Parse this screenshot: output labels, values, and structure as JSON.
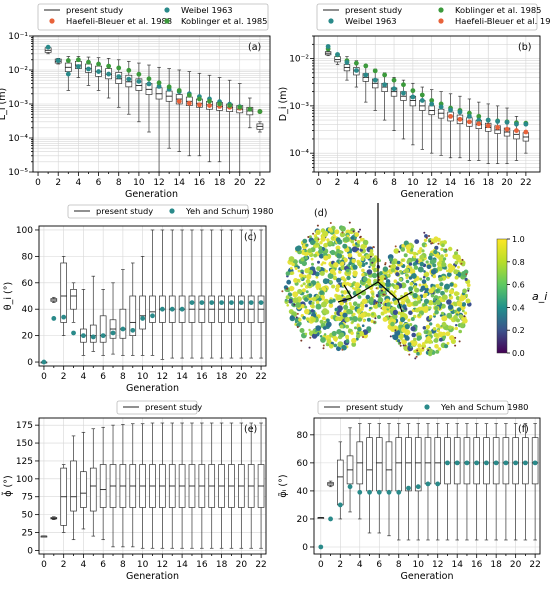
{
  "figure": {
    "panel_labels": [
      "(a)",
      "(b)",
      "(c)",
      "(d)",
      "(e)",
      "(f)"
    ]
  },
  "chart_data": [
    {
      "panel": "(a)",
      "type": "box",
      "xlabel": "Generation",
      "ylabel": "L_i (m)",
      "yscale": "log",
      "ylim": [
        1e-05,
        0.1
      ],
      "xticks": [
        "0",
        "2",
        "4",
        "6",
        "8",
        "10",
        "12",
        "14",
        "16",
        "18",
        "20",
        "22"
      ],
      "yticks": [
        "10⁻⁵",
        "10⁻⁴",
        "10⁻³",
        "10⁻²",
        "10⁻¹"
      ],
      "legend": [
        "present study",
        "Weibel 1963",
        "Haefeli-Bleuer et al. 1988",
        "Koblinger et al. 1985"
      ],
      "generations": [
        1,
        2,
        3,
        4,
        5,
        6,
        7,
        8,
        9,
        10,
        11,
        12,
        13,
        14,
        15,
        16,
        17,
        18,
        19,
        20,
        21,
        22
      ],
      "box_median": [
        0.038,
        0.018,
        0.012,
        0.014,
        0.011,
        0.009,
        0.0075,
        0.0055,
        0.0045,
        0.0035,
        0.0027,
        0.002,
        0.0017,
        0.0014,
        0.0012,
        0.00105,
        0.00095,
        0.00085,
        0.00078,
        0.0007,
        0.00062,
        0.00022
      ],
      "box_q1": [
        0.033,
        0.016,
        0.009,
        0.011,
        0.0085,
        0.0065,
        0.0055,
        0.004,
        0.0032,
        0.0025,
        0.0019,
        0.0014,
        0.0012,
        0.001,
        0.0009,
        0.0008,
        0.0007,
        0.00065,
        0.0006,
        0.00055,
        0.00048,
        0.00018
      ],
      "box_q3": [
        0.045,
        0.021,
        0.016,
        0.018,
        0.015,
        0.013,
        0.011,
        0.0085,
        0.007,
        0.0055,
        0.004,
        0.003,
        0.0024,
        0.0019,
        0.0016,
        0.0014,
        0.0012,
        0.0011,
        0.001,
        0.0009,
        0.0008,
        0.00026
      ],
      "box_low": [
        0.03,
        0.015,
        0.0025,
        0.006,
        0.0035,
        0.0025,
        0.0015,
        0.0008,
        0.0005,
        0.0003,
        0.00015,
        1e-05,
        5e-05,
        4e-05,
        3e-05,
        3e-05,
        2e-05,
        2e-05,
        1e-05,
        1e-05,
        0.0002,
        0.00015
      ],
      "box_high": [
        0.05,
        0.022,
        0.025,
        0.025,
        0.024,
        0.023,
        0.022,
        0.02,
        0.018,
        0.016,
        0.014,
        0.012,
        0.011,
        0.01,
        0.009,
        0.008,
        0.007,
        0.006,
        0.005,
        0.004,
        0.0015,
        0.0003
      ],
      "series": [
        {
          "name": "Weibel 1963",
          "color": "#2a8a8a",
          "x": [
            1,
            2,
            3,
            4,
            5,
            6,
            7,
            8,
            9,
            10,
            11,
            12,
            13,
            14,
            15,
            16,
            17,
            18,
            19,
            20,
            21,
            22
          ],
          "y": [
            0.047,
            0.019,
            0.0076,
            0.0127,
            0.0107,
            0.009,
            0.0076,
            0.0064,
            0.0054,
            0.0046,
            0.0039,
            0.0033,
            0.0027,
            0.0023,
            0.002,
            0.00165,
            0.00141,
            0.00117,
            0.00099,
            0.00083,
            0.0007,
            0.0006
          ]
        },
        {
          "name": "Haefeli-Bleuer et al. 1988",
          "color": "#e8623a",
          "x": [
            14,
            15,
            16,
            17,
            18,
            19,
            20,
            21,
            22
          ],
          "y": [
            0.0012,
            0.00105,
            0.00095,
            0.0009,
            0.00085,
            0.0008,
            0.00075,
            0.0007,
            0.0006
          ]
        },
        {
          "name": "Koblinger et al. 1985",
          "color": "#3c9a3c",
          "x": [
            3,
            4,
            5,
            6,
            7,
            8,
            9,
            10,
            11,
            12,
            13,
            14,
            15,
            16,
            17,
            18,
            19,
            20,
            21,
            22
          ],
          "y": [
            0.019,
            0.02,
            0.017,
            0.015,
            0.013,
            0.0115,
            0.0098,
            0.0075,
            0.0055,
            0.0042,
            0.0032,
            0.0025,
            0.0018,
            0.0014,
            0.0012,
            0.001,
            0.0009,
            0.0008,
            0.0007,
            0.0006
          ]
        }
      ]
    },
    {
      "panel": "(b)",
      "type": "box",
      "xlabel": "Generation",
      "ylabel": "D_i (m)",
      "yscale": "log",
      "ylim": [
        4e-05,
        0.03
      ],
      "xticks": [
        "0",
        "2",
        "4",
        "6",
        "8",
        "10",
        "12",
        "14",
        "16",
        "18",
        "20",
        "22"
      ],
      "yticks": [
        "10⁻⁴",
        "10⁻³",
        "10⁻²"
      ],
      "legend": [
        "present study",
        "Koblinger et al. 1985",
        "Weibel 1963",
        "Haefeli-Bleuer et al. 1988"
      ],
      "generations": [
        1,
        2,
        3,
        4,
        5,
        6,
        7,
        8,
        9,
        10,
        11,
        12,
        13,
        14,
        15,
        16,
        17,
        18,
        19,
        20,
        21,
        22
      ],
      "box_median": [
        0.013,
        0.0095,
        0.0065,
        0.0055,
        0.004,
        0.003,
        0.0025,
        0.002,
        0.0016,
        0.0013,
        0.001,
        0.0008,
        0.0007,
        0.0006,
        0.00052,
        0.00046,
        0.0004,
        0.00035,
        0.00031,
        0.00028,
        0.00025,
        0.00022
      ],
      "box_q1": [
        0.012,
        0.0085,
        0.0055,
        0.0045,
        0.0033,
        0.0024,
        0.002,
        0.0016,
        0.0013,
        0.001,
        0.0008,
        0.00065,
        0.00055,
        0.00048,
        0.00042,
        0.00037,
        0.00033,
        0.00029,
        0.00026,
        0.00023,
        0.0002,
        0.00018
      ],
      "box_q3": [
        0.014,
        0.011,
        0.0075,
        0.0065,
        0.0048,
        0.0037,
        0.003,
        0.0024,
        0.002,
        0.0016,
        0.0013,
        0.001,
        0.00085,
        0.00074,
        0.00064,
        0.00056,
        0.00049,
        0.00043,
        0.00038,
        0.00034,
        0.0003,
        0.00027
      ],
      "box_low": [
        0.0115,
        0.0075,
        0.0035,
        0.0025,
        0.0012,
        0.0008,
        0.0005,
        0.0003,
        0.0002,
        0.00015,
        0.00012,
        0.0001,
        9e-05,
        8e-05,
        8e-05,
        7e-05,
        7e-05,
        6e-05,
        6e-05,
        6e-05,
        7e-05,
        0.0001
      ],
      "box_high": [
        0.0145,
        0.0115,
        0.011,
        0.009,
        0.0075,
        0.006,
        0.005,
        0.004,
        0.0035,
        0.003,
        0.0025,
        0.0022,
        0.002,
        0.0018,
        0.0016,
        0.0014,
        0.0012,
        0.0011,
        0.001,
        0.0009,
        0.0006,
        0.0003
      ],
      "series": [
        {
          "name": "Koblinger et al. 1985",
          "color": "#3c9a3c",
          "x": [
            1,
            2,
            3,
            4,
            5,
            6,
            7,
            8,
            9,
            10,
            11,
            12,
            13,
            14,
            15,
            16,
            17,
            18,
            19,
            20,
            21,
            22
          ],
          "y": [
            0.016,
            0.012,
            0.009,
            0.008,
            0.007,
            0.0055,
            0.0045,
            0.0035,
            0.0028,
            0.0021,
            0.0017,
            0.0013,
            0.0011,
            0.0009,
            0.0008,
            0.0007,
            0.0006,
            0.0005,
            0.00048,
            0.00046,
            0.00044,
            0.00043
          ]
        },
        {
          "name": "Weibel 1963",
          "color": "#2a8a8a",
          "x": [
            1,
            2,
            3,
            4,
            5,
            6,
            7,
            8,
            9,
            10,
            11,
            12,
            13,
            14,
            15,
            16,
            17,
            18,
            19,
            20,
            21,
            22
          ],
          "y": [
            0.018,
            0.0122,
            0.0083,
            0.0056,
            0.0045,
            0.0035,
            0.0028,
            0.0023,
            0.00186,
            0.00154,
            0.0013,
            0.00109,
            0.00095,
            0.00082,
            0.00074,
            0.0006,
            0.0005,
            0.0005,
            0.00047,
            0.00045,
            0.00041,
            0.00041
          ]
        },
        {
          "name": "Haefeli-Bleuer et al. 1988",
          "color": "#e8623a",
          "x": [
            14,
            15,
            16,
            17,
            18,
            19,
            20,
            21,
            22
          ],
          "y": [
            0.0006,
            0.00052,
            0.00046,
            0.00042,
            0.00038,
            0.00035,
            0.00032,
            0.0003,
            0.00028
          ]
        }
      ]
    },
    {
      "panel": "(c)",
      "type": "box",
      "xlabel": "Generation",
      "ylabel": "θ_i (°)",
      "yscale": "linear",
      "ylim": [
        -3,
        103
      ],
      "xticks": [
        "0",
        "2",
        "4",
        "6",
        "8",
        "10",
        "12",
        "14",
        "16",
        "18",
        "20",
        "22"
      ],
      "yticks": [
        "0",
        "20",
        "40",
        "60",
        "80",
        "100"
      ],
      "legend": [
        "present study",
        "Yeh and Schum 1980"
      ],
      "generations": [
        0,
        1,
        2,
        3,
        4,
        5,
        6,
        7,
        8,
        9,
        10,
        11,
        12,
        13,
        14,
        15,
        16,
        17,
        18,
        19,
        20,
        21,
        22
      ],
      "box_median": [
        0,
        47,
        50,
        50,
        20,
        20,
        20,
        25,
        25,
        30,
        35,
        38,
        40,
        40,
        40,
        40,
        40,
        40,
        40,
        40,
        40,
        40,
        40
      ],
      "box_q1": [
        0,
        46,
        30,
        40,
        15,
        15,
        15,
        18,
        18,
        20,
        25,
        30,
        30,
        30,
        30,
        30,
        30,
        30,
        30,
        30,
        30,
        30,
        30
      ],
      "box_q3": [
        0,
        48,
        75,
        55,
        25,
        28,
        35,
        32,
        40,
        50,
        50,
        50,
        50,
        50,
        50,
        50,
        50,
        50,
        50,
        50,
        50,
        50,
        50
      ],
      "box_low": [
        0,
        45,
        20,
        30,
        5,
        8,
        5,
        6,
        5,
        5,
        5,
        5,
        2,
        3,
        3,
        3,
        3,
        3,
        3,
        3,
        3,
        3,
        3
      ],
      "box_high": [
        0,
        49,
        80,
        60,
        55,
        65,
        55,
        60,
        70,
        75,
        80,
        100,
        100,
        100,
        100,
        100,
        100,
        100,
        100,
        100,
        100,
        100,
        100
      ],
      "series": [
        {
          "name": "Yeh and Schum 1980",
          "color": "#2a8a8a",
          "x": [
            0,
            1,
            2,
            3,
            4,
            5,
            6,
            7,
            8,
            9,
            10,
            11,
            12,
            13,
            14,
            15,
            16,
            17,
            18,
            19,
            20,
            21,
            22
          ],
          "y": [
            0,
            33,
            34,
            22,
            20,
            19,
            20,
            22,
            25,
            24,
            33,
            35,
            40,
            40,
            40,
            45,
            45,
            45,
            45,
            45,
            45,
            45,
            45
          ]
        }
      ]
    },
    {
      "panel": "(d)",
      "type": "heatmap",
      "colorbar_label": "a_i",
      "colorbar_ticks": [
        "0.0",
        "0.2",
        "0.4",
        "0.6",
        "0.8",
        "1.0"
      ],
      "vmin": 0.0,
      "vmax": 1.0
    },
    {
      "panel": "(e)",
      "type": "box",
      "xlabel": "Generation",
      "ylabel": "ϕ̃ (°)",
      "yscale": "linear",
      "ylim": [
        -5,
        185
      ],
      "xticks": [
        "0",
        "2",
        "4",
        "6",
        "8",
        "10",
        "12",
        "14",
        "16",
        "18",
        "20",
        "22"
      ],
      "yticks": [
        "0",
        "25",
        "50",
        "75",
        "100",
        "125",
        "150",
        "175"
      ],
      "legend": [
        "present study"
      ],
      "generations": [
        0,
        1,
        2,
        3,
        4,
        5,
        6,
        7,
        8,
        9,
        10,
        11,
        12,
        13,
        14,
        15,
        16,
        17,
        18,
        19,
        20,
        21,
        22
      ],
      "box_median": [
        20,
        45,
        75,
        75,
        80,
        90,
        85,
        90,
        90,
        90,
        90,
        90,
        90,
        90,
        90,
        90,
        90,
        90,
        90,
        90,
        90,
        90,
        90
      ],
      "box_q1": [
        20,
        44,
        35,
        55,
        60,
        55,
        60,
        60,
        60,
        60,
        60,
        60,
        60,
        60,
        60,
        60,
        60,
        60,
        60,
        60,
        60,
        60,
        60
      ],
      "box_q3": [
        20,
        46,
        115,
        125,
        110,
        115,
        120,
        120,
        120,
        120,
        120,
        120,
        120,
        120,
        120,
        120,
        120,
        120,
        120,
        120,
        120,
        120,
        120
      ],
      "box_low": [
        20,
        43,
        25,
        15,
        30,
        20,
        15,
        5,
        5,
        5,
        3,
        3,
        3,
        3,
        3,
        3,
        3,
        3,
        3,
        3,
        3,
        3,
        3
      ],
      "box_high": [
        20,
        47,
        120,
        160,
        165,
        170,
        172,
        175,
        176,
        177,
        177,
        178,
        178,
        178,
        178,
        178,
        178,
        178,
        178,
        178,
        178,
        178,
        178
      ],
      "series": []
    },
    {
      "panel": "(f)",
      "type": "box",
      "xlabel": "Generation",
      "ylabel": "φ̃ᵢ (°)",
      "yscale": "linear",
      "ylim": [
        -5,
        92
      ],
      "xticks": [
        "0",
        "2",
        "4",
        "6",
        "8",
        "10",
        "12",
        "14",
        "16",
        "18",
        "20",
        "22"
      ],
      "yticks": [
        "0",
        "20",
        "40",
        "60",
        "80"
      ],
      "legend": [
        "present study",
        "Yeh and Schum 1980"
      ],
      "generations": [
        0,
        1,
        2,
        3,
        4,
        5,
        6,
        7,
        8,
        9,
        10,
        11,
        12,
        13,
        14,
        15,
        16,
        17,
        18,
        19,
        20,
        21,
        22
      ],
      "box_median": [
        21,
        45,
        50,
        55,
        60,
        55,
        60,
        55,
        60,
        60,
        60,
        60,
        60,
        60,
        60,
        60,
        60,
        60,
        60,
        60,
        60,
        60,
        60
      ],
      "box_q1": [
        21,
        44,
        30,
        45,
        45,
        40,
        40,
        40,
        40,
        40,
        40,
        45,
        45,
        45,
        45,
        45,
        45,
        45,
        45,
        45,
        45,
        45,
        45
      ],
      "box_q3": [
        21,
        46,
        62,
        65,
        75,
        78,
        78,
        75,
        78,
        78,
        78,
        78,
        78,
        78,
        78,
        78,
        78,
        78,
        78,
        78,
        78,
        78,
        78
      ],
      "box_low": [
        21,
        43,
        20,
        25,
        20,
        10,
        10,
        8,
        5,
        5,
        5,
        5,
        5,
        5,
        5,
        5,
        5,
        5,
        5,
        5,
        5,
        5,
        5
      ],
      "box_high": [
        21,
        47,
        75,
        85,
        88,
        88,
        88,
        88,
        88,
        88,
        88,
        88,
        88,
        88,
        88,
        88,
        88,
        88,
        88,
        88,
        88,
        88,
        88
      ],
      "series": [
        {
          "name": "Yeh and Schum 1980",
          "color": "#2a8a8a",
          "x": [
            0,
            1,
            2,
            3,
            4,
            5,
            6,
            7,
            8,
            9,
            10,
            11,
            12,
            13,
            14,
            15,
            16,
            17,
            18,
            19,
            20,
            21,
            22
          ],
          "y": [
            0,
            20,
            30,
            43,
            39,
            39,
            39,
            39,
            39,
            42,
            43,
            45,
            45,
            60,
            60,
            60,
            60,
            60,
            60,
            60,
            60,
            60,
            60
          ]
        }
      ]
    }
  ]
}
